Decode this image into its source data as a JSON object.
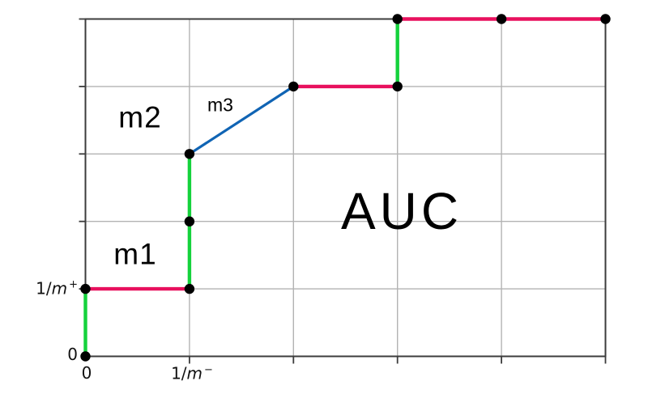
{
  "colors": {
    "step_up_green": "#15d23c",
    "step_right_red": "#e8115e",
    "slope_blue": "#1064b4",
    "grid": "#b3b3b3",
    "border": "#3c3c3c",
    "dot": "#000000"
  },
  "chart_data": {
    "type": "line",
    "x_range": [
      0,
      5
    ],
    "y_range": [
      0,
      5
    ],
    "grid": true,
    "legend": false,
    "x_tick_labels": [
      {
        "pos": 0,
        "text": "0"
      },
      {
        "pos": 1,
        "text": "1/m⁻"
      }
    ],
    "y_tick_labels": [
      {
        "pos": 0,
        "text": "0"
      },
      {
        "pos": 1,
        "text": "1/m⁺"
      }
    ],
    "points": [
      [
        0,
        0
      ],
      [
        0,
        1
      ],
      [
        1,
        1
      ],
      [
        1,
        2
      ],
      [
        1,
        3
      ],
      [
        2,
        4
      ],
      [
        3,
        4
      ],
      [
        3,
        5
      ],
      [
        4,
        5
      ],
      [
        5,
        5
      ]
    ],
    "segments": [
      {
        "x1": 0,
        "y1": 0,
        "x2": 0,
        "y2": 1,
        "color_key": "step_up_green"
      },
      {
        "x1": 0,
        "y1": 1,
        "x2": 1,
        "y2": 1,
        "color_key": "step_right_red"
      },
      {
        "x1": 1,
        "y1": 1,
        "x2": 1,
        "y2": 3,
        "color_key": "step_up_green"
      },
      {
        "x1": 1,
        "y1": 3,
        "x2": 2,
        "y2": 4,
        "color_key": "slope_blue"
      },
      {
        "x1": 2,
        "y1": 4,
        "x2": 3,
        "y2": 4,
        "color_key": "step_right_red"
      },
      {
        "x1": 3,
        "y1": 4,
        "x2": 3,
        "y2": 5,
        "color_key": "step_up_green"
      },
      {
        "x1": 3,
        "y1": 5,
        "x2": 5,
        "y2": 5,
        "color_key": "step_right_red"
      }
    ],
    "annotations": {
      "m1": "m1",
      "m2": "m2",
      "m3": "m3",
      "auc": "AUC"
    }
  },
  "axis_display": {
    "x_zero": "0",
    "x_frac": {
      "pre": "1/",
      "var": "m",
      "sup": "−"
    },
    "y_zero": "0",
    "y_frac": {
      "pre": "1/",
      "var": "m",
      "sup": "+"
    }
  }
}
